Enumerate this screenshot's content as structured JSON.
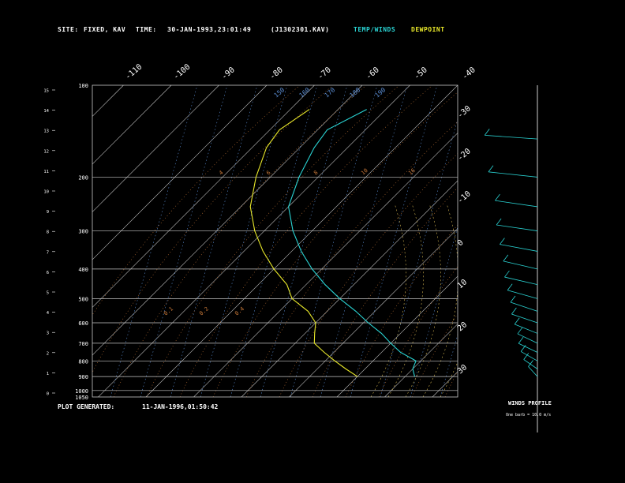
{
  "header": {
    "site_label": "SITE:",
    "site_value": "FIXED, KAV",
    "time_label": "TIME:",
    "time_value": "30-JAN-1993,23:01:49",
    "file_value": "(J1302301.KAV)",
    "legend_temp": "TEMP/WINDS",
    "legend_dew": "DEWPOINT"
  },
  "footer": {
    "generated_label": "PLOT GENERATED:",
    "generated_value": "11-JAN-1996,01:50:42"
  },
  "winds": {
    "title": "WINDS PROFILE",
    "scale_note": "One barb = 10.0 m/s"
  },
  "colors": {
    "temp": "#2ad4d4",
    "dew": "#e8e82a",
    "isotherm": "#c8c8c8",
    "isobar": "#c8c8c8",
    "dry_adiabat": "#c87838",
    "moist_adiabat": "#d2b450",
    "mixing_ratio": "#5a8cd2",
    "header_temp": "#2ad4d4",
    "header_dew": "#e8e82a"
  },
  "chart_data": {
    "type": "line",
    "pressure_labels": [
      "100",
      "200",
      "300",
      "400",
      "500",
      "600",
      "700",
      "800",
      "900",
      "1000",
      "1050"
    ],
    "pressure_levels": [
      100,
      200,
      300,
      400,
      500,
      600,
      700,
      800,
      900,
      1000,
      1050
    ],
    "height_labels": [
      "15",
      "14",
      "13",
      "12",
      "11",
      "10",
      "9",
      "8",
      "7",
      "6",
      "5",
      "4",
      "3",
      "2",
      "1",
      "0"
    ],
    "top_temp_labels": [
      "-110",
      "-100",
      "-90",
      "-80",
      "-70",
      "-60",
      "-50",
      "-40"
    ],
    "right_temp_labels": [
      "-30",
      "-20",
      "-10",
      "0",
      "10",
      "20",
      "30"
    ],
    "theta_labels": [
      "150",
      "160",
      "170",
      "180",
      "190"
    ],
    "mixing_labels": [
      "16",
      "10",
      "8",
      "6",
      "4",
      "0.4",
      "0.2",
      "0.1"
    ],
    "series": [
      {
        "name": "TEMP/WINDS",
        "temperature": [
          -54,
          -58,
          -57,
          -54,
          -50,
          -44,
          -38,
          -32,
          -26,
          -20,
          -14,
          -9,
          -4,
          0,
          4,
          9,
          10,
          12
        ],
        "pressure": [
          120,
          140,
          160,
          200,
          250,
          300,
          350,
          400,
          450,
          500,
          550,
          600,
          650,
          700,
          750,
          800,
          850,
          900
        ]
      },
      {
        "name": "DEWPOINT",
        "temperature": [
          -66,
          -68,
          -67,
          -63,
          -58,
          -52,
          -46,
          -40,
          -34,
          -30,
          -24,
          -20,
          -18,
          -16,
          -12,
          -8,
          -4,
          0
        ],
        "pressure": [
          120,
          140,
          160,
          200,
          250,
          300,
          350,
          400,
          450,
          500,
          550,
          600,
          650,
          700,
          750,
          800,
          850,
          900
        ]
      }
    ],
    "winds_profile": {
      "speed_ms": [
        42,
        38,
        30,
        28,
        25,
        22,
        20,
        18,
        16,
        14,
        12,
        10,
        8,
        7,
        5,
        4
      ],
      "direction_deg": [
        260,
        255,
        250,
        250,
        245,
        240,
        240,
        235,
        230,
        230,
        225,
        220,
        220,
        215,
        210,
        200
      ],
      "pressure": [
        150,
        200,
        250,
        300,
        350,
        400,
        450,
        500,
        550,
        600,
        650,
        700,
        750,
        800,
        850,
        900
      ]
    }
  }
}
